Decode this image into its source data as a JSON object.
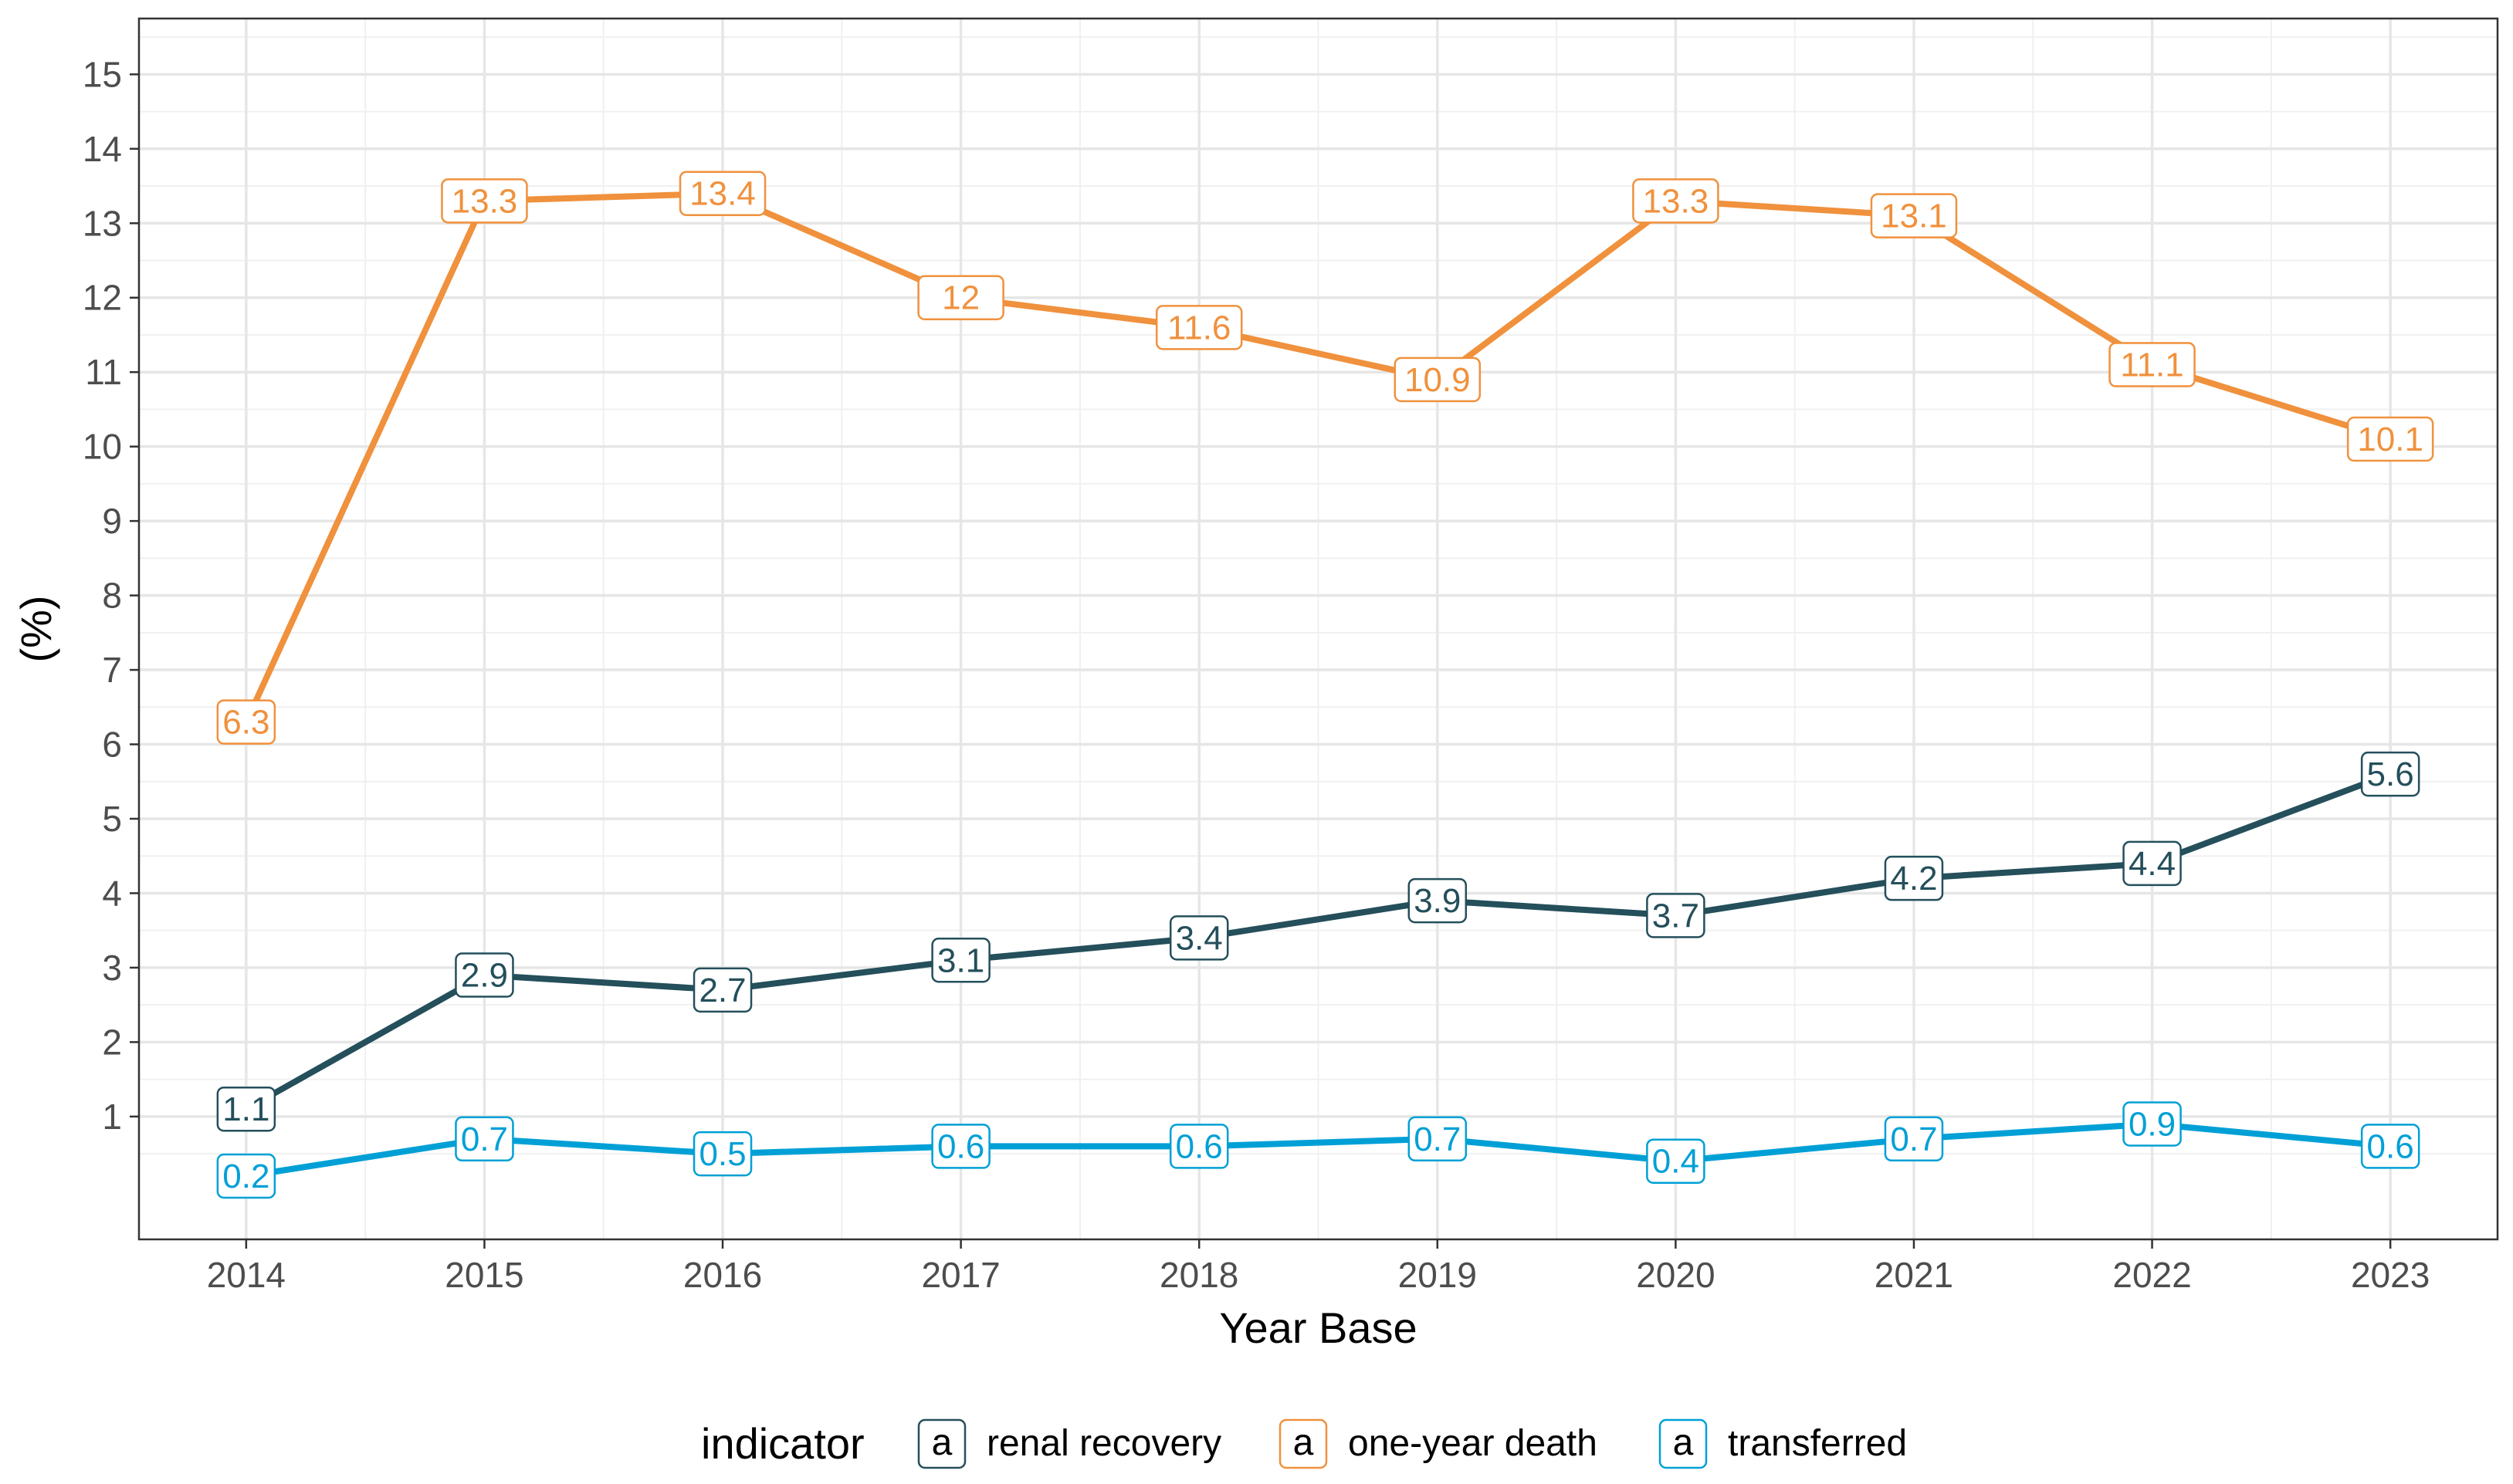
{
  "chart_data": {
    "type": "line",
    "title": "",
    "xlabel": "Year Base",
    "ylabel": "(%)",
    "x": [
      2014,
      2015,
      2016,
      2017,
      2018,
      2019,
      2020,
      2021,
      2022,
      2023
    ],
    "xlim": [
      2013.55,
      2023.45
    ],
    "ylim": [
      -0.65,
      15.75
    ],
    "y_ticks": [
      1,
      2,
      3,
      4,
      5,
      6,
      7,
      8,
      9,
      10,
      11,
      12,
      13,
      14,
      15
    ],
    "grid": true,
    "legend_title": "indicator",
    "legend_position": "bottom",
    "legend_key_text": "a",
    "series": [
      {
        "name": "renal recovery",
        "color": "#244f5b",
        "values": [
          1.1,
          2.9,
          2.7,
          3.1,
          3.4,
          3.9,
          3.7,
          4.2,
          4.4,
          5.6
        ],
        "labels": [
          "1.1",
          "2.9",
          "2.7",
          "3.1",
          "3.4",
          "3.9",
          "3.7",
          "4.2",
          "4.4",
          "5.6"
        ]
      },
      {
        "name": "one-year death",
        "color": "#f0913d",
        "values": [
          6.3,
          13.3,
          13.4,
          12.0,
          11.6,
          10.9,
          13.3,
          13.1,
          11.1,
          10.1
        ],
        "labels": [
          "6.3",
          "13.3",
          "13.4",
          "12",
          "11.6",
          "10.9",
          "13.3",
          "13.1",
          "11.1",
          "10.1"
        ]
      },
      {
        "name": "transferred",
        "color": "#00a0d6",
        "values": [
          0.2,
          0.7,
          0.5,
          0.6,
          0.6,
          0.7,
          0.4,
          0.7,
          0.9,
          0.6
        ],
        "labels": [
          "0.2",
          "0.7",
          "0.5",
          "0.6",
          "0.6",
          "0.7",
          "0.4",
          "0.7",
          "0.9",
          "0.6"
        ]
      }
    ]
  }
}
